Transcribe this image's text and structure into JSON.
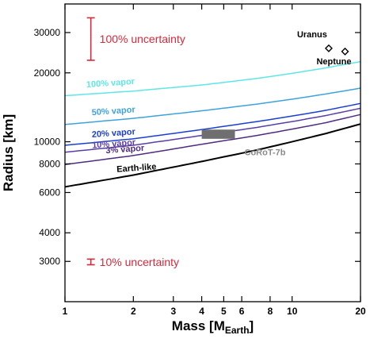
{
  "chart_data": {
    "type": "line",
    "xlabel": "Mass [M",
    "xlabel_sub": "Earth",
    "xlabel_close": "]",
    "ylabel": "Radius [km]",
    "x_scale": "log",
    "y_scale": "log",
    "xlim": [
      1,
      20
    ],
    "ylim": [
      2000,
      40000
    ],
    "x_ticks": [
      1,
      2,
      3,
      4,
      5,
      6,
      8,
      10,
      20
    ],
    "x_tick_labels": [
      "1",
      "2",
      "3",
      "4",
      "5",
      "6",
      "8",
      "10",
      "20"
    ],
    "y_ticks": [
      3000,
      4000,
      6000,
      8000,
      10000,
      20000,
      30000
    ],
    "y_tick_labels": [
      "3000",
      "4000",
      "6000",
      "8000",
      "10000",
      "20000",
      "30000"
    ],
    "x": [
      1,
      2,
      4,
      7,
      10,
      14,
      20
    ],
    "series": [
      {
        "name": "100% vapor",
        "color": "#5fe6e6",
        "values": [
          15900,
          16650,
          17700,
          18900,
          19900,
          21000,
          22400
        ]
      },
      {
        "name": "50% vapor",
        "color": "#3ea3dd",
        "values": [
          11900,
          12650,
          13650,
          14600,
          15350,
          16150,
          17150
        ]
      },
      {
        "name": "20% vapor",
        "color": "#1c3fd0",
        "values": [
          9650,
          10300,
          11300,
          12250,
          12950,
          13700,
          14700
        ]
      },
      {
        "name": "10% vapor",
        "color": "#5a3ea6",
        "values": [
          9000,
          9650,
          10650,
          11550,
          12250,
          13000,
          14000
        ]
      },
      {
        "name": "3% vapor",
        "color": "#4f2b82",
        "values": [
          7950,
          8700,
          9750,
          10650,
          11350,
          12100,
          13150
        ]
      },
      {
        "name": "Earth-like",
        "color": "#000000",
        "values": [
          6350,
          7150,
          8200,
          9200,
          10000,
          10850,
          11950
        ]
      }
    ],
    "planets": [
      {
        "name": "Uranus",
        "mass": 14.5,
        "radius": 25600
      },
      {
        "name": "Neptune",
        "mass": 17.1,
        "radius": 24800
      }
    ],
    "corot": {
      "name": "CoRoT-7b",
      "mass_range": [
        4.0,
        5.6
      ],
      "radius_range": [
        10300,
        11300
      ]
    },
    "uncertainty": [
      {
        "label": "100% uncertainty",
        "mass": 1.3,
        "low": 22700,
        "high": 34800
      },
      {
        "label": "10% uncertainty",
        "mass": 1.3,
        "low": 2900,
        "high": 3070
      }
    ]
  }
}
